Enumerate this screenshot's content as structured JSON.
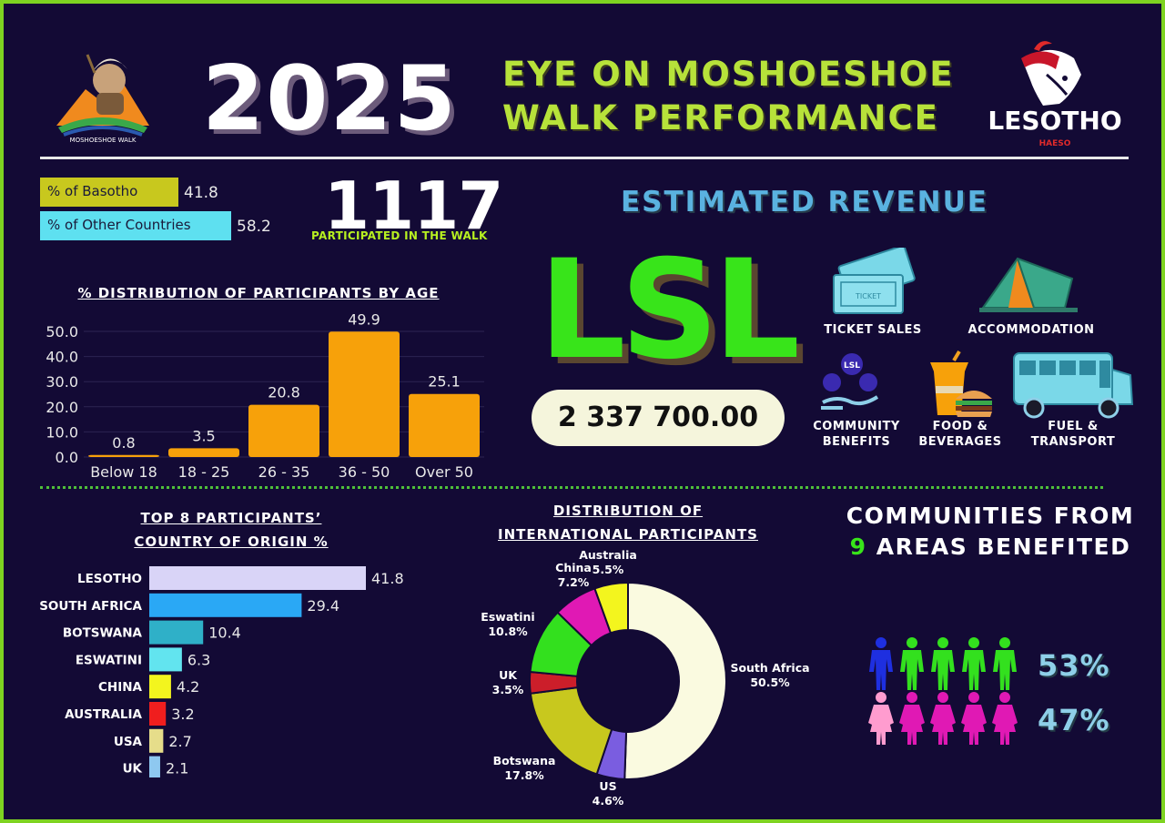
{
  "header": {
    "year": "2025",
    "title_line1": "EYE ON MOSHOESHOE",
    "title_line2": "WALK PERFORMANCE",
    "left_logo_text": "MOSHOESHOE WALK",
    "right_logo_text": "LESOTHO",
    "right_logo_sub": "HAESO"
  },
  "nationality": {
    "items": [
      {
        "label": "% of Basotho",
        "value": "41.8",
        "color": "#c8c81e"
      },
      {
        "label": "% of Other Countries",
        "value": "58.2",
        "color": "#5ee0f0"
      }
    ]
  },
  "participants": {
    "count": "1117",
    "label": "PARTICIPATED IN THE WALK"
  },
  "revenue": {
    "title": "ESTIMATED REVENUE",
    "currency": "LSL",
    "amount": "2 337 700.00",
    "categories": [
      {
        "label": "TICKET SALES",
        "icon": "ticket-icon"
      },
      {
        "label": "ACCOMMODATION",
        "icon": "tent-icon"
      },
      {
        "label": "COMMUNITY BENEFITS",
        "icon": "community-hands-icon",
        "badge": "LSL"
      },
      {
        "label": "FOOD & BEVERAGES",
        "icon": "food-drink-icon"
      },
      {
        "label": "FUEL & TRANSPORT",
        "icon": "bus-icon"
      }
    ]
  },
  "communities": {
    "title_line1": "COMMUNITIES FROM",
    "title_number": "9",
    "title_line2_rest": "AREAS BENEFITED",
    "male_pct": "53%",
    "female_pct": "47%",
    "colors": {
      "male_highlight": "#1e2fe0",
      "male": "#33e01e",
      "female_highlight": "#ff9ccf",
      "female": "#e019b4"
    }
  },
  "chart_data": [
    {
      "type": "bar",
      "title": "% DISTRIBUTION OF PARTICIPANTS BY AGE",
      "categories": [
        "Below 18",
        "18 - 25",
        "26 - 35",
        "36 - 50",
        "Over 50"
      ],
      "values": [
        0.8,
        3.5,
        20.8,
        49.9,
        25.1
      ],
      "data_labels": [
        "0.8",
        "3.5",
        "20.8",
        "49.9",
        "25.1"
      ],
      "ylim": [
        0,
        50
      ],
      "yticks": [
        "0.0",
        "10.0",
        "20.0",
        "30.0",
        "40.0",
        "50.0"
      ],
      "color": "#f7a10a",
      "grid": true
    },
    {
      "type": "bar",
      "orientation": "horizontal",
      "title_line1": "TOP 8 PARTICIPANTS’",
      "title_line2": "COUNTRY OF ORIGIN %",
      "categories": [
        "LESOTHO",
        "SOUTH AFRICA",
        "BOTSWANA",
        "ESWATINI",
        "CHINA",
        "AUSTRALIA",
        "USA",
        "UK"
      ],
      "values": [
        41.8,
        29.4,
        10.4,
        6.3,
        4.2,
        3.2,
        2.7,
        2.1
      ],
      "data_labels": [
        "41.8",
        "29.4",
        "10.4",
        "6.3",
        "4.2",
        "3.2",
        "2.7",
        "2.1"
      ],
      "colors": [
        "#d9d4f7",
        "#2aa8f5",
        "#2fb0c8",
        "#62e4ef",
        "#f3f51e",
        "#f01e1e",
        "#e6dd8a",
        "#8ec8f0"
      ]
    },
    {
      "type": "pie",
      "donut": true,
      "title_line1": "DISTRIBUTION OF",
      "title_line2": "INTERNATIONAL PARTICIPANTS",
      "slices": [
        {
          "name": "South Africa",
          "value": 50.5,
          "label": "50.5%",
          "color": "#fafae0"
        },
        {
          "name": "US",
          "value": 4.6,
          "label": "4.6%",
          "color": "#7a5de0"
        },
        {
          "name": "Botswana",
          "value": 17.8,
          "label": "17.8%",
          "color": "#c8c81e"
        },
        {
          "name": "UK",
          "value": 3.5,
          "label": "3.5%",
          "color": "#cc1e2a"
        },
        {
          "name": "Eswatini",
          "value": 10.8,
          "label": "10.8%",
          "color": "#33e01e"
        },
        {
          "name": "China",
          "value": 7.2,
          "label": "7.2%",
          "color": "#e019b4"
        },
        {
          "name": "Australia",
          "value": 5.5,
          "label": "5.5%",
          "color": "#f3f51e"
        }
      ]
    }
  ]
}
